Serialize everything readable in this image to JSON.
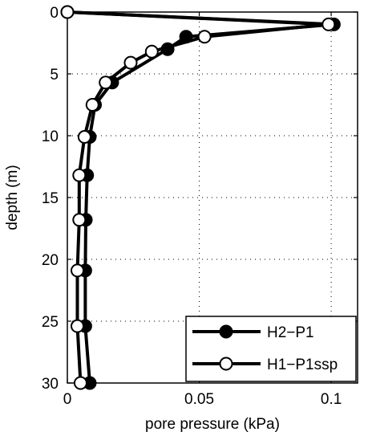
{
  "chart_data": {
    "type": "line",
    "xlabel": "pore pressure (kPa)",
    "ylabel": "depth (m)",
    "xlim": [
      0,
      0.11
    ],
    "ylim": [
      0,
      30
    ],
    "y_reversed": true,
    "grid": true,
    "x_ticks": [
      0,
      0.05,
      0.1
    ],
    "x_tick_labels": [
      "0",
      "0.05",
      "0.1"
    ],
    "y_ticks": [
      0,
      5,
      10,
      15,
      20,
      25,
      30
    ],
    "y_tick_labels": [
      "0",
      "5",
      "10",
      "15",
      "20",
      "25",
      "30"
    ],
    "legend_position": "bottom-right",
    "series": [
      {
        "name": "H2−P1",
        "marker": "filled-circle",
        "color": "#000000",
        "points": [
          [
            0.0,
            0.0
          ],
          [
            0.101,
            1.0
          ],
          [
            0.045,
            2.0
          ],
          [
            0.038,
            3.0
          ],
          [
            0.017,
            5.7
          ],
          [
            0.0105,
            7.5
          ],
          [
            0.0085,
            10.1
          ],
          [
            0.0075,
            13.2
          ],
          [
            0.007,
            16.8
          ],
          [
            0.0068,
            20.9
          ],
          [
            0.0068,
            25.4
          ],
          [
            0.0085,
            30.0
          ]
        ]
      },
      {
        "name": "H1−P1ssp",
        "marker": "open-circle",
        "color": "#000000",
        "points": [
          [
            0.0,
            0.0
          ],
          [
            0.099,
            1.0
          ],
          [
            0.052,
            2.0
          ],
          [
            0.032,
            3.2
          ],
          [
            0.024,
            4.1
          ],
          [
            0.0145,
            5.7
          ],
          [
            0.0095,
            7.5
          ],
          [
            0.0065,
            10.1
          ],
          [
            0.0045,
            13.2
          ],
          [
            0.0045,
            16.8
          ],
          [
            0.0038,
            20.9
          ],
          [
            0.0038,
            25.4
          ],
          [
            0.005,
            30.0
          ]
        ]
      }
    ]
  }
}
